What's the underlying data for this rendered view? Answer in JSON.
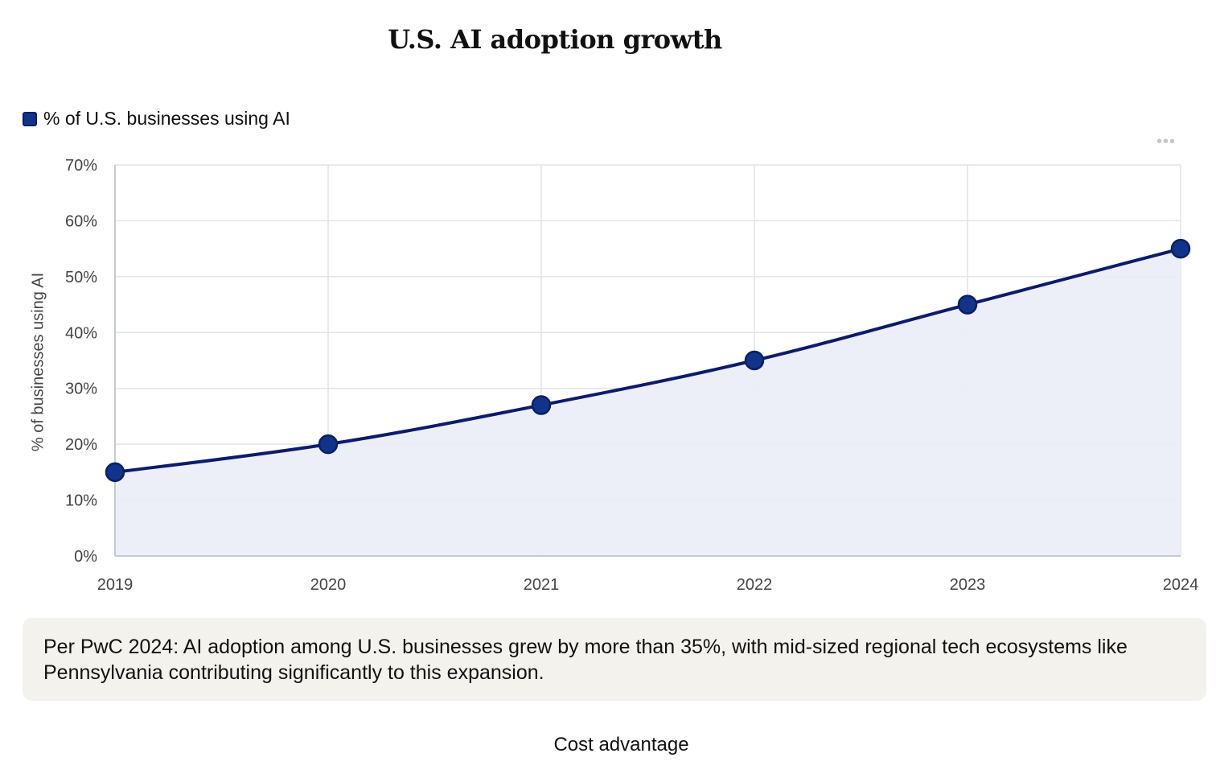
{
  "chart_data": {
    "type": "area",
    "title": "U.S. AI adoption growth",
    "categories": [
      "2019",
      "2020",
      "2021",
      "2022",
      "2023",
      "2024"
    ],
    "series": [
      {
        "name": "% of U.S. businesses using AI",
        "values": [
          15,
          20,
          27,
          35,
          45,
          55
        ]
      }
    ],
    "ylabel": "% of businesses using AI",
    "xlabel": "",
    "ylim": [
      0,
      70
    ],
    "yticks": [
      0,
      10,
      20,
      30,
      40,
      50,
      60,
      70
    ],
    "ytick_format": "%",
    "grid": true,
    "legend": "top-left"
  },
  "colors": {
    "line": "#0d1b6e",
    "point": "#12338a",
    "area_fill": "#eaedf7",
    "grid": "#e2e4ea",
    "axis": "#c5c9d2"
  },
  "menu_icon": "more-horizontal-icon",
  "note": {
    "text": "Per PwC 2024: AI adoption among U.S. businesses grew by more than 35%, with mid-sized regional tech ecosystems like Pennsylvania contributing significantly to this expansion."
  },
  "footer": {
    "text": "Cost advantage"
  }
}
